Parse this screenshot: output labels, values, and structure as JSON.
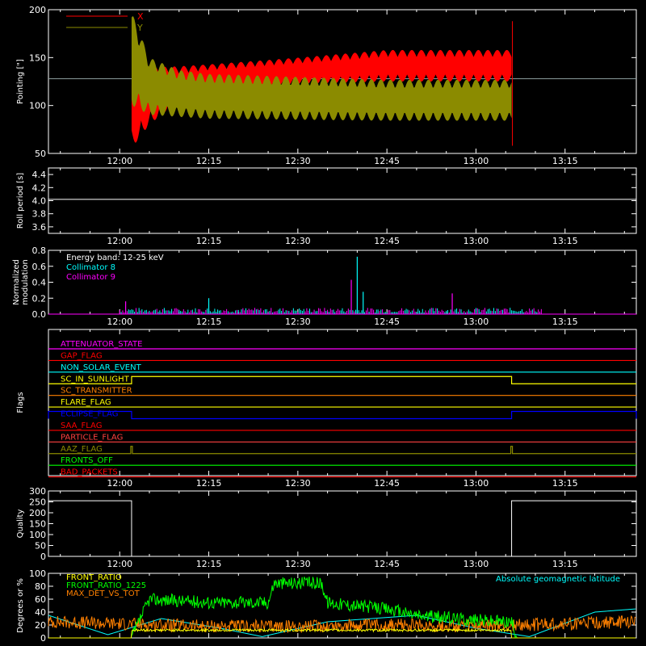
{
  "colors": {
    "background": "#000000",
    "axes": "#ffffff",
    "red": "#ff0000",
    "olive": "#8b8b00",
    "cyan": "#00ffff",
    "magenta": "#ff00ff",
    "yellow": "#ffff00",
    "green": "#00ff00",
    "orange": "#ff8000",
    "blue": "#0000ff",
    "salmon": "#ff4040"
  },
  "chart_data": [
    {
      "id": "pointing",
      "type": "area",
      "ylabel": "Pointing [\"]",
      "xlim": [
        "11:48",
        "13:27"
      ],
      "ylim": [
        50,
        200
      ],
      "yticks": [
        50,
        100,
        150,
        200
      ],
      "xticks": [
        "12:00",
        "12:15",
        "12:30",
        "12:45",
        "13:00",
        "13:15"
      ],
      "baseline": 128,
      "legend": [
        {
          "name": "X",
          "color": "#ff0000"
        },
        {
          "name": "Y",
          "color": "#8b8b00"
        }
      ],
      "series": [
        {
          "name": "X",
          "x": [
            "12:02",
            "12:05",
            "12:10",
            "12:15",
            "12:30",
            "12:45",
            "13:00",
            "13:06"
          ],
          "lower": [
            55,
            80,
            105,
            115,
            122,
            125,
            125,
            125
          ],
          "upper": [
            140,
            140,
            141,
            143,
            150,
            158,
            158,
            158
          ]
        },
        {
          "name": "Y",
          "x": [
            "12:02",
            "12:05",
            "12:10",
            "12:15",
            "12:30",
            "12:45",
            "13:00",
            "13:06"
          ],
          "lower": [
            100,
            90,
            88,
            86,
            85,
            84,
            84,
            84
          ],
          "upper": [
            198,
            150,
            137,
            133,
            130,
            127,
            127,
            127
          ]
        }
      ]
    },
    {
      "id": "roll",
      "type": "line",
      "ylabel": "Roll period [s]",
      "xlim": [
        "11:48",
        "13:27"
      ],
      "ylim": [
        3.5,
        4.5
      ],
      "yticks": [
        3.6,
        3.8,
        4.0,
        4.2,
        4.4
      ],
      "xticks": [
        "12:00",
        "12:15",
        "12:30",
        "12:45",
        "13:00",
        "13:15"
      ],
      "series": [
        {
          "name": "roll period",
          "x": [
            "11:48",
            "13:27"
          ],
          "values": [
            4.02,
            4.02
          ]
        }
      ]
    },
    {
      "id": "modulation",
      "type": "bar",
      "ylabel": "Normalized modulation",
      "xlim": [
        "11:48",
        "13:27"
      ],
      "ylim": [
        0,
        0.8
      ],
      "yticks": [
        0.0,
        0.2,
        0.4,
        0.6,
        0.8
      ],
      "xticks": [
        "12:00",
        "12:15",
        "12:30",
        "12:45",
        "13:00",
        "13:15"
      ],
      "annotation": "Energy band: 12-25 keV",
      "legend": [
        {
          "name": "Collimator 8",
          "color": "#00ffff"
        },
        {
          "name": "Collimator 9",
          "color": "#ff00ff"
        }
      ],
      "spikes": [
        {
          "x": "12:39",
          "value": 0.43,
          "series": "Collimator 9"
        },
        {
          "x": "12:40",
          "value": 0.72,
          "series": "Collimator 8"
        },
        {
          "x": "12:41",
          "value": 0.28,
          "series": "Collimator 8"
        },
        {
          "x": "12:56",
          "value": 0.26,
          "series": "Collimator 9"
        },
        {
          "x": "12:15",
          "value": 0.2,
          "series": "Collimator 8"
        },
        {
          "x": "12:01",
          "value": 0.16,
          "series": "Collimator 9"
        }
      ]
    },
    {
      "id": "flags",
      "type": "line",
      "ylabel": "Flags",
      "xlim": [
        "11:48",
        "13:27"
      ],
      "xticks": [
        "12:00",
        "12:15",
        "12:30",
        "12:45",
        "13:00",
        "13:15"
      ],
      "series": [
        {
          "name": "ATTENUATOR_STATE",
          "color": "#ff00ff",
          "steps": []
        },
        {
          "name": "GAP_FLAG",
          "color": "#ff0000",
          "steps": []
        },
        {
          "name": "NON_SOLAR_EVENT",
          "color": "#00ffff",
          "steps": []
        },
        {
          "name": "SC_IN_SUNLIGHT",
          "color": "#ffff00",
          "steps": [
            {
              "from": "12:02",
              "to": "13:06",
              "state": 1
            }
          ]
        },
        {
          "name": "SC_TRANSMITTER",
          "color": "#ff8000",
          "steps": []
        },
        {
          "name": "FLARE_FLAG",
          "color": "#ffff00",
          "steps": []
        },
        {
          "name": "ECLIPSE_FLAG",
          "color": "#0000ff",
          "steps": [
            {
              "from": "11:48",
              "to": "12:02",
              "state": 1
            },
            {
              "from": "13:06",
              "to": "13:27",
              "state": 1
            }
          ]
        },
        {
          "name": "SAA_FLAG",
          "color": "#ff0000",
          "steps": []
        },
        {
          "name": "PARTICLE_FLAG",
          "color": "#ff4040",
          "steps": []
        },
        {
          "name": "AAZ_FLAG",
          "color": "#8b8b00",
          "steps": [
            {
              "from": "12:02",
              "to": "12:02",
              "state": 1
            },
            {
              "from": "13:06",
              "to": "13:06",
              "state": 1
            }
          ]
        },
        {
          "name": "FRONTS_OFF",
          "color": "#00ff00",
          "steps": []
        },
        {
          "name": "BAD_PACKETS",
          "color": "#ff0000",
          "steps": []
        }
      ]
    },
    {
      "id": "quality",
      "type": "line",
      "ylabel": "Quality",
      "xlim": [
        "11:48",
        "13:27"
      ],
      "ylim": [
        0,
        300
      ],
      "yticks": [
        0,
        50,
        100,
        150,
        200,
        250,
        300
      ],
      "xticks": [
        "12:00",
        "12:15",
        "12:30",
        "12:45",
        "13:00",
        "13:15"
      ],
      "series": [
        {
          "name": "quality",
          "x": [
            "11:48",
            "12:02",
            "12:02",
            "13:06",
            "13:06",
            "13:27"
          ],
          "values": [
            255,
            255,
            0,
            0,
            255,
            255
          ]
        }
      ]
    },
    {
      "id": "ratios",
      "type": "line",
      "ylabel": "Degrees or %",
      "xlim": [
        "11:48",
        "13:27"
      ],
      "ylim": [
        0,
        100
      ],
      "yticks": [
        0,
        20,
        40,
        60,
        80,
        100
      ],
      "legend": [
        {
          "name": "FRONT_RATIO",
          "color": "#ffff00"
        },
        {
          "name": "FRONT_RATIO_1225",
          "color": "#00ff00"
        },
        {
          "name": "MAX_DET_VS_TOT",
          "color": "#ff8000"
        }
      ],
      "annotation": "Absolute geomagnetic latitude",
      "annotation_color": "#00ffff",
      "series": [
        {
          "name": "FRONT_RATIO",
          "color": "#ffff00",
          "x": [
            "11:48",
            "12:02",
            "12:02",
            "13:06",
            "13:06",
            "13:27"
          ],
          "values": [
            0,
            0,
            12,
            12,
            0,
            0
          ]
        },
        {
          "name": "FRONT_RATIO_1225",
          "color": "#00ff00",
          "x": [
            "11:48",
            "12:02",
            "12:05",
            "12:15",
            "12:25",
            "12:26",
            "12:34",
            "12:35",
            "12:45",
            "12:50",
            "13:00",
            "13:06",
            "13:07",
            "13:27"
          ],
          "values": [
            0,
            0,
            60,
            55,
            55,
            85,
            85,
            55,
            45,
            35,
            28,
            25,
            0,
            0
          ]
        },
        {
          "name": "MAX_DET_VS_TOT",
          "color": "#ff8000",
          "x": [
            "11:48",
            "12:00",
            "12:15",
            "12:30",
            "12:45",
            "13:00",
            "13:15",
            "13:27"
          ],
          "values": [
            25,
            22,
            18,
            18,
            20,
            18,
            22,
            25
          ]
        },
        {
          "name": "Absolute geomagnetic latitude",
          "color": "#00ffff",
          "x": [
            "11:48",
            "11:58",
            "12:07",
            "12:17",
            "12:24",
            "12:35",
            "12:50",
            "13:00",
            "13:09",
            "13:20",
            "13:27"
          ],
          "values": [
            35,
            5,
            30,
            15,
            2,
            25,
            35,
            15,
            2,
            40,
            45
          ]
        }
      ]
    }
  ]
}
